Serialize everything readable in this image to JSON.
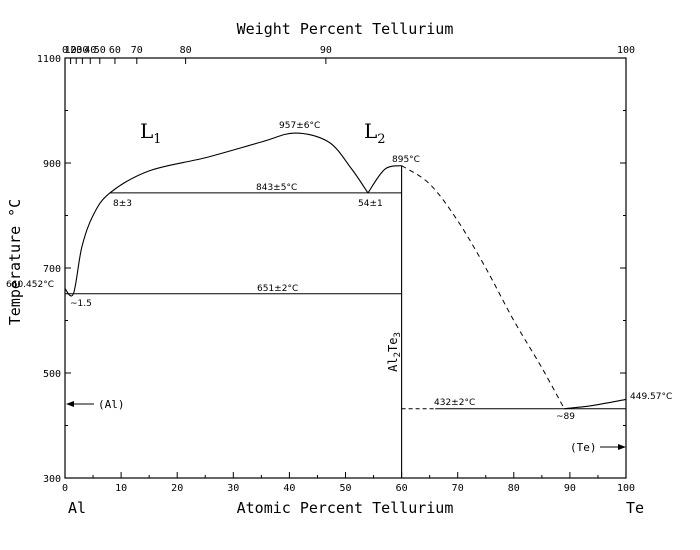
{
  "title_top": "Weight Percent Tellurium",
  "xlabel": "Atomic Percent Tellurium",
  "ylabel": "Temperature °C",
  "element_left": "Al",
  "element_right": "Te",
  "bottom_ticks": [
    "0",
    "10",
    "20",
    "30",
    "40",
    "50",
    "60",
    "70",
    "80",
    "90",
    "100"
  ],
  "top_ticks": [
    "0",
    "10",
    "20",
    "30",
    "40",
    "50",
    "60",
    "70",
    "80",
    "90",
    "100"
  ],
  "y_ticks": [
    "300",
    "500",
    "700",
    "900",
    "1100"
  ],
  "phases": {
    "L1": "L",
    "L1_sub": "1",
    "L2": "L",
    "L2_sub": "2",
    "compound_a": "Al",
    "compound_a_sub": "2",
    "compound_b": "Te",
    "compound_b_sub": "3",
    "al_phase": "(Al)",
    "te_phase": "(Te)"
  },
  "annotations": {
    "max_temp": "957±6°C",
    "congruent": "895°C",
    "monotectic": "843±5°C",
    "mono_left": "8±3",
    "mono_right": "54±1",
    "eutectic_al": "651±2°C",
    "al_melt": "660.452°C",
    "eut_al_comp": "~1.5",
    "eutectic_te": "432±2°C",
    "eut_te_comp": "~89",
    "te_melt": "449.57°C"
  },
  "chart_data": {
    "type": "phase-diagram",
    "x_unit": "Atomic Percent Tellurium",
    "y_unit": "Temperature °C",
    "xlim": [
      0,
      100
    ],
    "ylim": [
      300,
      1100
    ],
    "liquidus_al_side": [
      [
        0,
        660.452
      ],
      [
        1.5,
        651
      ],
      [
        3,
        740
      ],
      [
        5,
        800
      ],
      [
        8,
        843
      ],
      [
        15,
        885
      ],
      [
        25,
        910
      ],
      [
        35,
        940
      ],
      [
        41,
        957
      ],
      [
        47,
        940
      ],
      [
        51,
        890
      ],
      [
        54,
        843
      ]
    ],
    "liquidus_compound": [
      [
        54,
        843
      ],
      [
        57,
        888
      ],
      [
        60,
        895
      ]
    ],
    "liquidus_te_side_dashed": [
      [
        60,
        895
      ],
      [
        65,
        860
      ],
      [
        70,
        790
      ],
      [
        75,
        700
      ],
      [
        80,
        600
      ],
      [
        85,
        510
      ],
      [
        89,
        432
      ]
    ],
    "liquidus_te_end": [
      [
        89,
        432
      ],
      [
        94,
        438
      ],
      [
        100,
        449.57
      ]
    ],
    "isotherms": [
      {
        "label": "monotectic",
        "T": 843,
        "x_from": 8,
        "x_to": 60
      },
      {
        "label": "eutectic_al",
        "T": 651,
        "x_from": 0,
        "x_to": 60
      },
      {
        "label": "eutectic_te_dashed",
        "T": 432,
        "x_from": 60,
        "x_to": 66
      },
      {
        "label": "eutectic_te",
        "T": 432,
        "x_from": 66,
        "x_to": 100
      }
    ],
    "compound_line": {
      "x": 60,
      "T_from": 300,
      "T_to": 895
    },
    "weight_percent_tick_at_atomic": [
      [
        0,
        0
      ],
      [
        10,
        1.0
      ],
      [
        20,
        2.0
      ],
      [
        30,
        3.1
      ],
      [
        40,
        4.5
      ],
      [
        50,
        6.2
      ],
      [
        60,
        8.9
      ],
      [
        70,
        12.8
      ],
      [
        80,
        21.5
      ],
      [
        90,
        46.5
      ],
      [
        100,
        100
      ]
    ]
  }
}
